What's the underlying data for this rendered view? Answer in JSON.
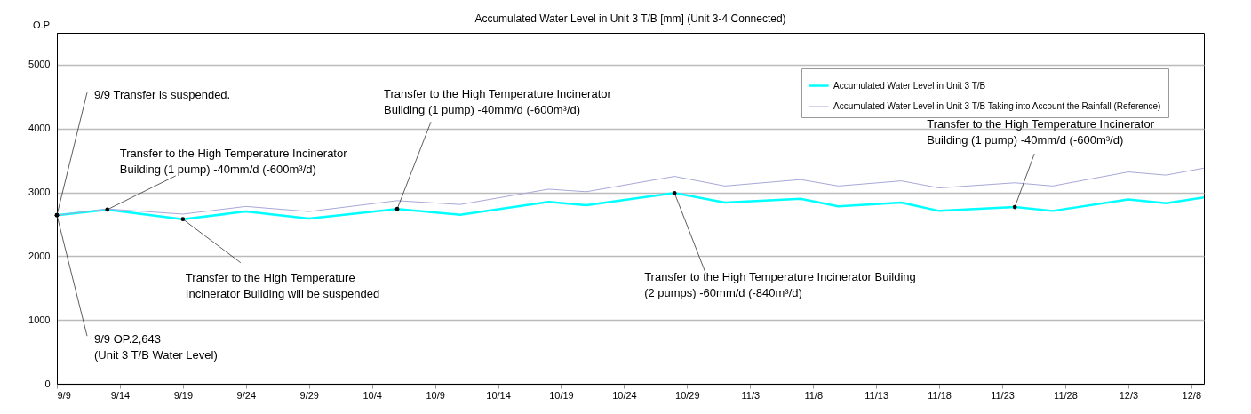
{
  "chart_data": {
    "type": "line",
    "title": "Accumulated Water Level in Unit 3 T/B [mm] (Unit 3-4 Connected)",
    "ylabel": "O.P",
    "x": [
      "--09-09",
      "--09-13",
      "--09-19",
      "--09-24",
      "--09-29",
      "--10-06",
      "--10-11",
      "--10-18",
      "--10-21",
      "--10-28",
      "--11-01",
      "--11-07",
      "--11-10",
      "--11-15",
      "--11-18",
      "--11-24",
      "--11-27",
      "--12-03",
      "--12-06",
      "--12-09"
    ],
    "series": [
      {
        "name": "Accumulated Water Level in Unit 3 T/B",
        "color": "#00ffff",
        "values": [
          2643,
          2730,
          2580,
          2700,
          2590,
          2740,
          2650,
          2850,
          2800,
          2990,
          2840,
          2900,
          2780,
          2840,
          2710,
          2770,
          2710,
          2890,
          2830,
          2920
        ]
      },
      {
        "name": "Accumulated Water Level in Unit 3 T/B Taking into Account the Rainfall (Reference)",
        "color": "#a8a8d8",
        "values": [
          2643,
          2740,
          2660,
          2780,
          2700,
          2870,
          2810,
          3050,
          3010,
          3250,
          3100,
          3200,
          3100,
          3180,
          3070,
          3150,
          3100,
          3320,
          3270,
          3380
        ]
      }
    ],
    "xlim": [
      "--09-09",
      "--12-09"
    ],
    "xticks": [
      {
        "value": "--09-09",
        "label": "9/9"
      },
      {
        "value": "--09-14",
        "label": "9/14"
      },
      {
        "value": "--09-19",
        "label": "9/19"
      },
      {
        "value": "--09-24",
        "label": "9/24"
      },
      {
        "value": "--09-29",
        "label": "9/29"
      },
      {
        "value": "--10-04",
        "label": "10/4"
      },
      {
        "value": "--10-09",
        "label": "10/9"
      },
      {
        "value": "--10-14",
        "label": "10/14"
      },
      {
        "value": "--10-19",
        "label": "10/19"
      },
      {
        "value": "--10-24",
        "label": "10/24"
      },
      {
        "value": "--10-29",
        "label": "10/29"
      },
      {
        "value": "--11-03",
        "label": "11/3"
      },
      {
        "value": "--11-08",
        "label": "11/8"
      },
      {
        "value": "--11-13",
        "label": "11/13"
      },
      {
        "value": "--11-18",
        "label": "11/18"
      },
      {
        "value": "--11-23",
        "label": "11/23"
      },
      {
        "value": "--11-28",
        "label": "11/28"
      },
      {
        "value": "--12-03",
        "label": "12/3"
      },
      {
        "value": "--12-08",
        "label": "12/8"
      }
    ],
    "ylim": [
      0,
      5500
    ],
    "yticks": [
      0,
      1000,
      2000,
      3000,
      4000,
      5000
    ],
    "grid": "y",
    "legend": "top right",
    "annotations": [
      {
        "text": "9/9  Transfer is suspended.",
        "x": "--09-09",
        "y": 2643
      },
      {
        "text": "9/9  OP.2,643 (Unit 3 T/B Water Level)",
        "x": "--09-09",
        "y": 2643
      },
      {
        "text": "Transfer to the High Temperature Incinerator Building (1 pump) -40mm/d (-600m³/d)",
        "x": "--09-13",
        "y": 2730
      },
      {
        "text": "Transfer to the High Temperature Incinerator Building will be suspended",
        "x": "--09-19",
        "y": 2580
      },
      {
        "text": "Transfer to the High Temperature Incinerator Building (1 pump) -40mm/d (-600m³/d)",
        "x": "--10-06",
        "y": 2740
      },
      {
        "text": "Transfer to the High Temperature Incinerator Building (2 pumps) -60mm/d (-840m³/d)",
        "x": "--10-28",
        "y": 2990
      },
      {
        "text": "Transfer to the High Temperature Incinerator Building (1 pump) -40mm/d (-600m³/d)",
        "x": "--11-24",
        "y": 2770
      }
    ]
  }
}
